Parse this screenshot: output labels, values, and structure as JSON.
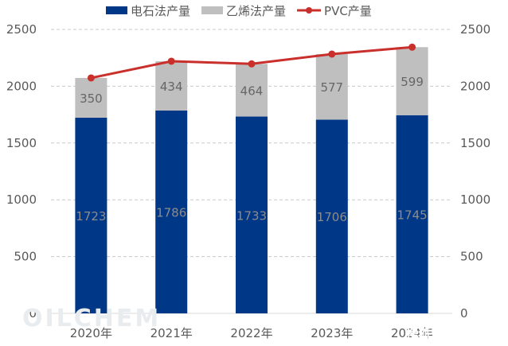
{
  "chart_data": {
    "type": "bar",
    "stacked": true,
    "categories": [
      "2020年",
      "2021年",
      "2022年",
      "2023年",
      "2024年"
    ],
    "series": [
      {
        "name": "电石法产量",
        "kind": "bar",
        "color": "#003786",
        "label_color": "#8c8c8c",
        "values": [
          1723,
          1786,
          1733,
          1706,
          1745
        ]
      },
      {
        "name": "乙烯法产量",
        "kind": "bar",
        "color": "#bfbfbf",
        "label_color": "#666666",
        "values": [
          350,
          434,
          464,
          577,
          599
        ]
      },
      {
        "name": "PVC产量",
        "kind": "line",
        "color": "#c9302c",
        "values": [
          2073,
          2220,
          2197,
          2283,
          2344
        ]
      }
    ],
    "ylim": [
      0,
      2500
    ],
    "yticks": [
      0,
      500,
      1000,
      1500,
      2000,
      2500
    ],
    "secondary_ylim": [
      0,
      2500
    ],
    "grid": true,
    "legend_position": "top"
  },
  "watermark": "OILCHEM",
  "corner_label": "搜狐号@隆众资讯"
}
